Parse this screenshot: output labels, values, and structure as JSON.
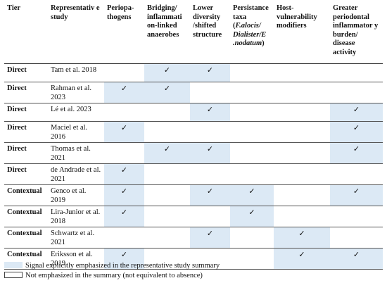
{
  "columns": [
    {
      "key": "tier",
      "label": "Tier"
    },
    {
      "key": "study",
      "label": "Representativ e study"
    },
    {
      "key": "periopathogens",
      "label": "Periopa- thogens"
    },
    {
      "key": "bridging",
      "label": "Bridging/ inflammati on-linked anaerobes"
    },
    {
      "key": "diversity",
      "label": "Lower diversity /shifted structure"
    },
    {
      "key": "persistance",
      "label_prefix": "Persistance taxa (",
      "label_italic": "F.alocis/ Dialister/E .nodatum",
      "label_suffix": ")"
    },
    {
      "key": "host",
      "label": "Host- vulnerability modifiers"
    },
    {
      "key": "burden",
      "label": "Greater periodontal inflammator y burden/ disease activity"
    }
  ],
  "check_mark": "✓",
  "rows": [
    {
      "tier": "Direct",
      "study": "Tam et al. 2018",
      "marks": [
        false,
        true,
        true,
        false,
        false,
        false
      ]
    },
    {
      "tier": "Direct",
      "study": "Rahman et al. 2023",
      "marks": [
        true,
        true,
        false,
        false,
        false,
        false
      ]
    },
    {
      "tier": "Direct",
      "study": "Lé et al. 2023",
      "marks": [
        false,
        false,
        true,
        false,
        false,
        true
      ]
    },
    {
      "tier": "Direct",
      "study": "Maciel et al. 2016",
      "marks": [
        true,
        false,
        false,
        false,
        false,
        true
      ]
    },
    {
      "tier": "Direct",
      "study": "Thomas et al. 2021",
      "marks": [
        false,
        true,
        true,
        false,
        false,
        true
      ]
    },
    {
      "tier": "Direct",
      "study": "de Andrade et al. 2021",
      "marks": [
        true,
        false,
        false,
        false,
        false,
        false
      ]
    },
    {
      "tier": "Contextual",
      "study": "Genco et al. 2019",
      "marks": [
        true,
        false,
        true,
        true,
        false,
        true
      ]
    },
    {
      "tier": "Contextual",
      "study": "Lira-Junior et al. 2018",
      "marks": [
        true,
        false,
        false,
        true,
        false,
        false
      ]
    },
    {
      "tier": "Contextual",
      "study": "Schwartz et al. 2021",
      "marks": [
        false,
        false,
        true,
        false,
        true,
        false
      ]
    },
    {
      "tier": "Contextual",
      "study": "Eriksson et al. 2019",
      "marks": [
        true,
        false,
        false,
        false,
        true,
        true
      ]
    }
  ],
  "legend": {
    "emphasized": "Signal explicitly emphasized in the representative study summary",
    "not_emphasized": "Not emphasized in the summary (not equivalent to absence)"
  },
  "colors": {
    "highlight": "#dce9f5"
  }
}
